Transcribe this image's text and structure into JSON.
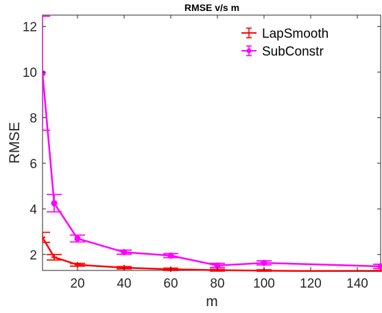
{
  "chart_data": {
    "type": "line",
    "title": "RMSE v/s m",
    "xlabel": "m",
    "ylabel": "RMSE",
    "xlim": [
      5,
      150
    ],
    "ylim": [
      1.3,
      12.5
    ],
    "xticks": [
      20,
      40,
      60,
      80,
      100,
      120,
      140
    ],
    "yticks": [
      2,
      4,
      6,
      8,
      10,
      12
    ],
    "grid": false,
    "legend_position": "top-right",
    "x": [
      5,
      10,
      20,
      40,
      60,
      80,
      100,
      150
    ],
    "series": [
      {
        "name": "LapSmooth",
        "color": "#ff0000",
        "marker": "plus",
        "values": [
          2.75,
          1.88,
          1.55,
          1.42,
          1.35,
          1.31,
          1.29,
          1.25
        ],
        "errors": [
          0.22,
          0.12,
          0.06,
          0.05,
          0.05,
          0.04,
          0.04,
          0.05
        ]
      },
      {
        "name": "SubConstr",
        "color": "#ff00ff",
        "marker": "circle",
        "values": [
          9.95,
          4.25,
          2.7,
          2.1,
          1.95,
          1.52,
          1.63,
          1.48
        ],
        "errors": [
          2.5,
          0.38,
          0.15,
          0.09,
          0.09,
          0.09,
          0.09,
          0.09
        ]
      }
    ]
  }
}
